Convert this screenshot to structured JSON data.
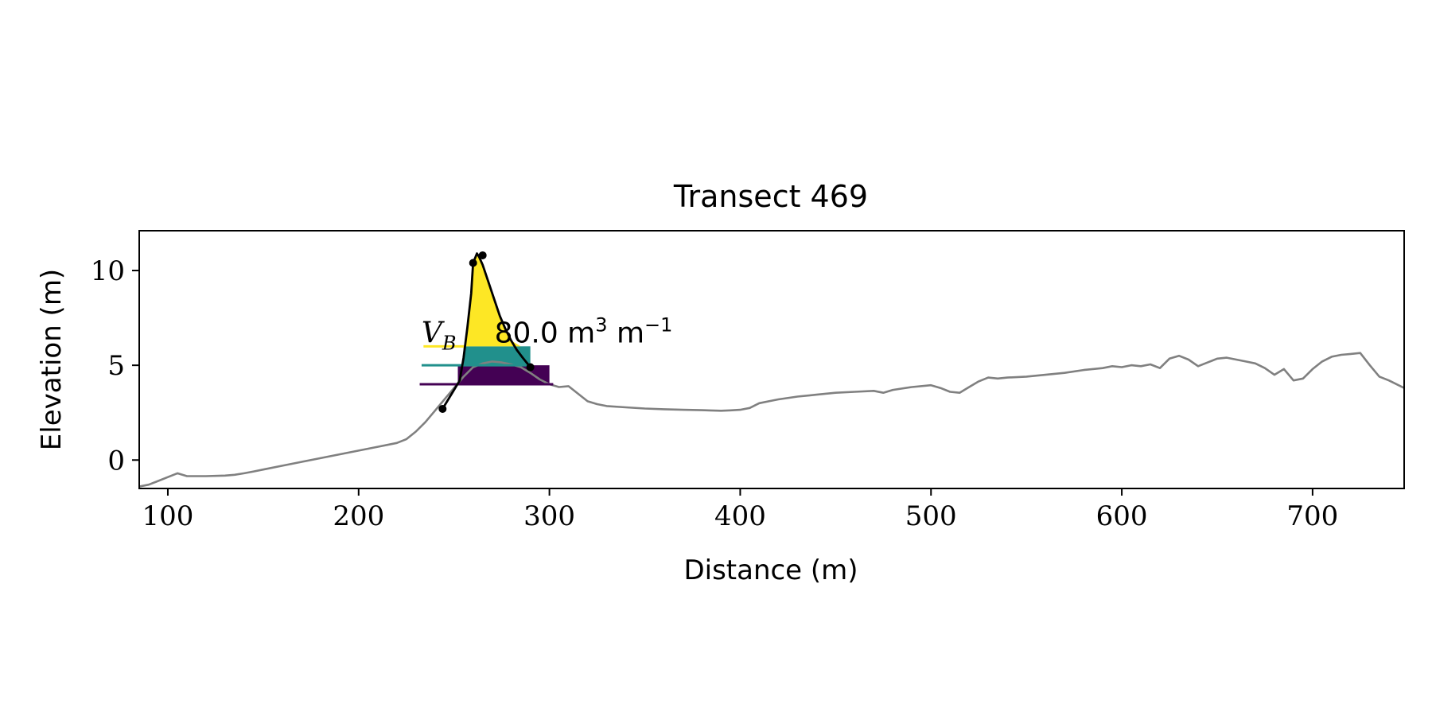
{
  "chart_data": {
    "type": "line",
    "title": "Transect 469",
    "xlabel": "Distance (m)",
    "ylabel": "Elevation (m)",
    "xlim": [
      85,
      748
    ],
    "ylim": [
      -1.5,
      12.1
    ],
    "grid": false,
    "legend": "none",
    "x_ticks": [
      100,
      200,
      300,
      400,
      500,
      600,
      700
    ],
    "y_ticks": [
      0,
      5,
      10
    ],
    "colors": {
      "profile": "#808080",
      "dune_outline": "#000000",
      "lower_region": "#d0d0d0",
      "band_1": "#440154",
      "band_2": "#21908c",
      "band_3": "#fde725"
    },
    "profile": {
      "x": [
        85,
        90,
        95,
        100,
        105,
        110,
        120,
        130,
        135,
        140,
        145,
        150,
        160,
        170,
        180,
        190,
        200,
        210,
        220,
        225,
        230,
        235,
        240,
        245,
        250,
        255,
        260,
        265,
        270,
        275,
        280,
        285,
        290,
        295,
        300,
        305,
        310,
        315,
        320,
        325,
        330,
        340,
        350,
        360,
        370,
        380,
        390,
        395,
        400,
        405,
        410,
        415,
        420,
        430,
        440,
        450,
        460,
        470,
        475,
        480,
        490,
        500,
        505,
        510,
        515,
        520,
        525,
        530,
        535,
        540,
        550,
        560,
        570,
        580,
        590,
        595,
        600,
        605,
        610,
        615,
        620,
        625,
        630,
        635,
        640,
        645,
        650,
        655,
        660,
        665,
        670,
        675,
        680,
        685,
        690,
        695,
        700,
        705,
        710,
        715,
        720,
        725,
        730,
        735,
        740,
        748
      ],
      "y": [
        -1.4,
        -1.3,
        -1.1,
        -0.9,
        -0.7,
        -0.85,
        -0.85,
        -0.82,
        -0.78,
        -0.7,
        -0.6,
        -0.5,
        -0.3,
        -0.1,
        0.1,
        0.3,
        0.5,
        0.7,
        0.9,
        1.1,
        1.5,
        2.0,
        2.6,
        3.2,
        3.8,
        4.4,
        4.9,
        5.1,
        5.2,
        5.15,
        5.05,
        4.9,
        4.6,
        4.25,
        4.0,
        3.85,
        3.9,
        3.5,
        3.1,
        2.95,
        2.85,
        2.78,
        2.72,
        2.68,
        2.65,
        2.63,
        2.6,
        2.62,
        2.65,
        2.75,
        3.0,
        3.1,
        3.2,
        3.35,
        3.45,
        3.55,
        3.6,
        3.65,
        3.55,
        3.7,
        3.85,
        3.95,
        3.8,
        3.6,
        3.55,
        3.85,
        4.15,
        4.35,
        4.3,
        4.35,
        4.4,
        4.5,
        4.6,
        4.75,
        4.85,
        4.95,
        4.9,
        5.0,
        4.95,
        5.05,
        4.85,
        5.35,
        5.5,
        5.3,
        4.95,
        5.15,
        5.35,
        5.4,
        5.3,
        5.2,
        5.1,
        4.85,
        4.5,
        4.8,
        4.2,
        4.3,
        4.8,
        5.2,
        5.45,
        5.55,
        5.6,
        5.65,
        5.0,
        4.4,
        4.2,
        3.8
      ]
    },
    "dune": {
      "outline_x": [
        244,
        247,
        250,
        253,
        255,
        257,
        259,
        260,
        262,
        263,
        265,
        268,
        271,
        274,
        277,
        280,
        283,
        286,
        290
      ],
      "outline_y": [
        2.7,
        3.2,
        3.7,
        4.2,
        5.4,
        7.0,
        8.8,
        10.4,
        10.9,
        10.75,
        10.3,
        9.4,
        8.5,
        7.6,
        6.9,
        6.3,
        5.8,
        5.4,
        4.9
      ],
      "points": [
        {
          "x": 244,
          "y": 2.7
        },
        {
          "x": 260,
          "y": 10.4
        },
        {
          "x": 265,
          "y": 10.8
        },
        {
          "x": 290,
          "y": 4.9
        }
      ],
      "lower_region": {
        "x": [
          244,
          300,
          300,
          244
        ],
        "y": [
          2.7,
          4.0,
          4.0,
          2.7
        ]
      },
      "bands": [
        {
          "level": 4.0,
          "top": 5.0,
          "line_x0": 232,
          "line_x1": 302,
          "fill_x0": 252,
          "fill_x1": 300
        },
        {
          "level": 5.0,
          "top": 6.0,
          "line_x0": 233,
          "line_x1": 290,
          "fill_x0": 255,
          "fill_x1": 290
        },
        {
          "level": 6.0,
          "top": 10.9,
          "line_x0": 234,
          "line_x1": 256,
          "fill_x0": 256,
          "fill_x1": 285
        }
      ]
    },
    "annotation": {
      "symbol": "V",
      "subscript": "B",
      "value_text": "80.0 m",
      "unit_sup_1": "3",
      "unit_mid": " m",
      "unit_sup_2": "−1",
      "x": 233,
      "y": 6.2
    }
  }
}
